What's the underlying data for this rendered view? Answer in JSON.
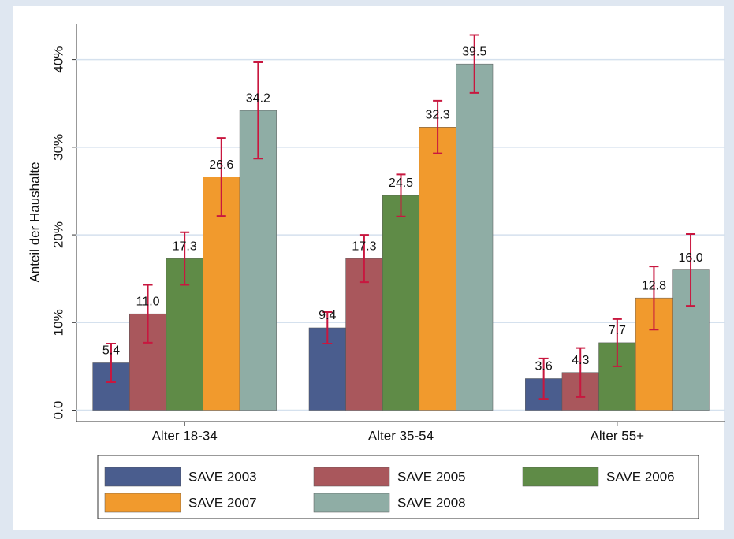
{
  "chart_data": {
    "type": "bar",
    "y_label": "Anteil der Haushalte",
    "categories": [
      "Alter 18-34",
      "Alter 35-54",
      "Alter 55+"
    ],
    "series": [
      {
        "name": "SAVE 2003",
        "color": "#4a5d8e",
        "values": [
          5.4,
          9.4,
          3.6
        ],
        "value_labels": [
          "5.4",
          "9.4",
          "3.6"
        ],
        "errors": [
          2.2,
          1.8,
          2.3
        ]
      },
      {
        "name": "SAVE 2005",
        "color": "#a9575c",
        "values": [
          11.0,
          17.3,
          4.3
        ],
        "value_labels": [
          "11.0",
          "17.3",
          "4.3"
        ],
        "errors": [
          3.3,
          2.7,
          2.8
        ]
      },
      {
        "name": "SAVE 2006",
        "color": "#5f8b47",
        "values": [
          17.3,
          24.5,
          7.7
        ],
        "value_labels": [
          "17.3",
          "24.5",
          "7.7"
        ],
        "errors": [
          3.0,
          2.4,
          2.7
        ]
      },
      {
        "name": "SAVE 2007",
        "color": "#f19a2d",
        "values": [
          26.6,
          32.3,
          12.8
        ],
        "value_labels": [
          "26.6",
          "32.3",
          "12.8"
        ],
        "errors": [
          4.45,
          3.0,
          3.6
        ]
      },
      {
        "name": "SAVE 2008",
        "color": "#8fada5",
        "values": [
          34.2,
          39.5,
          16.0
        ],
        "value_labels": [
          "34.2",
          "39.5",
          "16.0"
        ],
        "errors": [
          5.5,
          3.3,
          4.1
        ]
      }
    ],
    "error_color": "#c8173f",
    "ylim": [
      -1.3,
      44.1
    ],
    "yticks": [
      {
        "value": 0,
        "label": "0.0"
      },
      {
        "value": 10,
        "label": "10%"
      },
      {
        "value": 20,
        "label": "20%"
      },
      {
        "value": 30,
        "label": "30%"
      },
      {
        "value": 40,
        "label": "40%"
      }
    ],
    "grid": true
  }
}
